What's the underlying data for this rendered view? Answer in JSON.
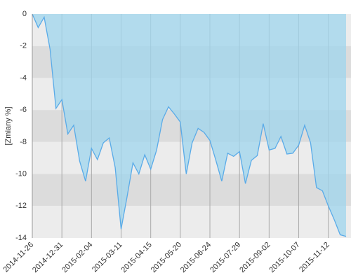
{
  "chart_data": {
    "type": "area",
    "y_label": "[Zmiany %]",
    "categories": [
      "2014-11-26",
      null,
      null,
      null,
      null,
      "2014-12-31",
      null,
      null,
      null,
      null,
      "2015-02-04",
      null,
      null,
      null,
      null,
      "2015-03-11",
      null,
      null,
      null,
      null,
      "2015-04-15",
      null,
      null,
      null,
      null,
      "2015-05-20",
      null,
      null,
      null,
      null,
      "2015-06-24",
      null,
      null,
      null,
      null,
      "2015-07-29",
      null,
      null,
      null,
      null,
      "2015-09-02",
      null,
      null,
      null,
      null,
      "2015-10-07",
      null,
      null,
      null,
      null,
      "2015-11-12",
      null,
      null,
      null
    ],
    "values": [
      0,
      -0.85,
      -0.2,
      -2.2,
      -5.9,
      -5.35,
      -7.5,
      -6.95,
      -9.2,
      -10.45,
      -8.4,
      -9.1,
      -8.05,
      -7.75,
      -9.6,
      -13.45,
      -11.45,
      -9.3,
      -10.0,
      -8.8,
      -9.7,
      -8.5,
      -6.6,
      -5.8,
      -6.25,
      -6.75,
      -10.0,
      -8.05,
      -7.15,
      -7.4,
      -7.9,
      -9.15,
      -10.45,
      -8.7,
      -8.9,
      -8.6,
      -10.6,
      -9.15,
      -8.85,
      -6.85,
      -8.5,
      -8.4,
      -7.65,
      -8.75,
      -8.7,
      -8.2,
      -6.95,
      -8.05,
      -10.85,
      -11.05,
      -12.0,
      -12.85,
      -13.8,
      -13.9
    ],
    "color": "#5aabe8",
    "fill_color": "#9fd6ee",
    "band_colors": [
      "#ececec",
      "#dcdcdc"
    ],
    "ylim": [
      -14,
      0
    ],
    "yticks": [
      0,
      -2,
      -4,
      -6,
      -8,
      -10,
      -12,
      -14
    ],
    "grid": true
  }
}
